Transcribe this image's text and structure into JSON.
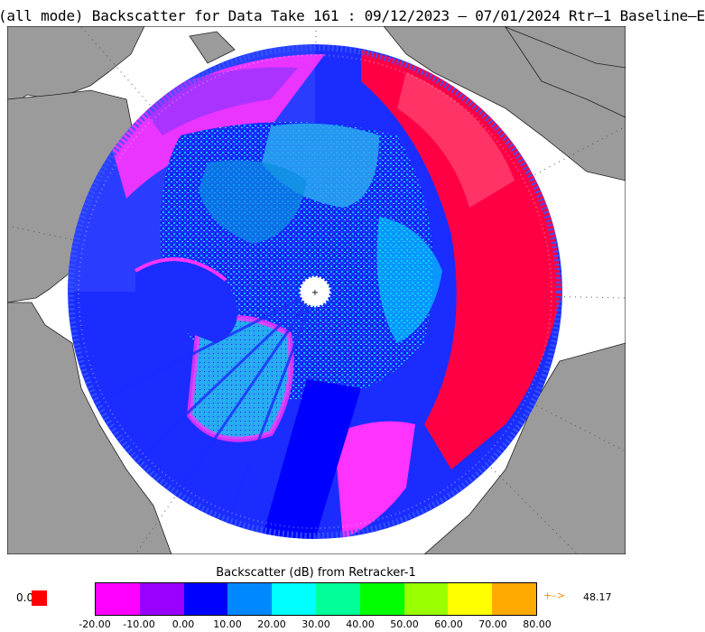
{
  "title": "(all mode) Backscatter for Data Take 161 : 09/12/2023 – 07/01/2024 Rtr–1 Baseline–E",
  "colorbar": {
    "title": "Backscatter (dB) from Retracker-1",
    "ticks": [
      "-20.00",
      "-10.00",
      "0.00",
      "10.00",
      "20.00",
      "30.00",
      "40.00",
      "50.00",
      "60.00",
      "70.00",
      "80.00"
    ],
    "colors": [
      "#ff00ff",
      "#9900ff",
      "#0000ff",
      "#0088ff",
      "#00ffff",
      "#00ff99",
      "#00ff00",
      "#99ff00",
      "#ffff00",
      "#ffaa00"
    ],
    "zero_label": "0.0",
    "max_arrow": "+–>",
    "max_value": "48.17"
  },
  "map": {
    "projection": "north-polar-stereographic",
    "land_color": "#9b9b9b",
    "ocean_color": "#ffffff",
    "pole_hole_color": "#ffffff",
    "pole_marker": "+"
  }
}
